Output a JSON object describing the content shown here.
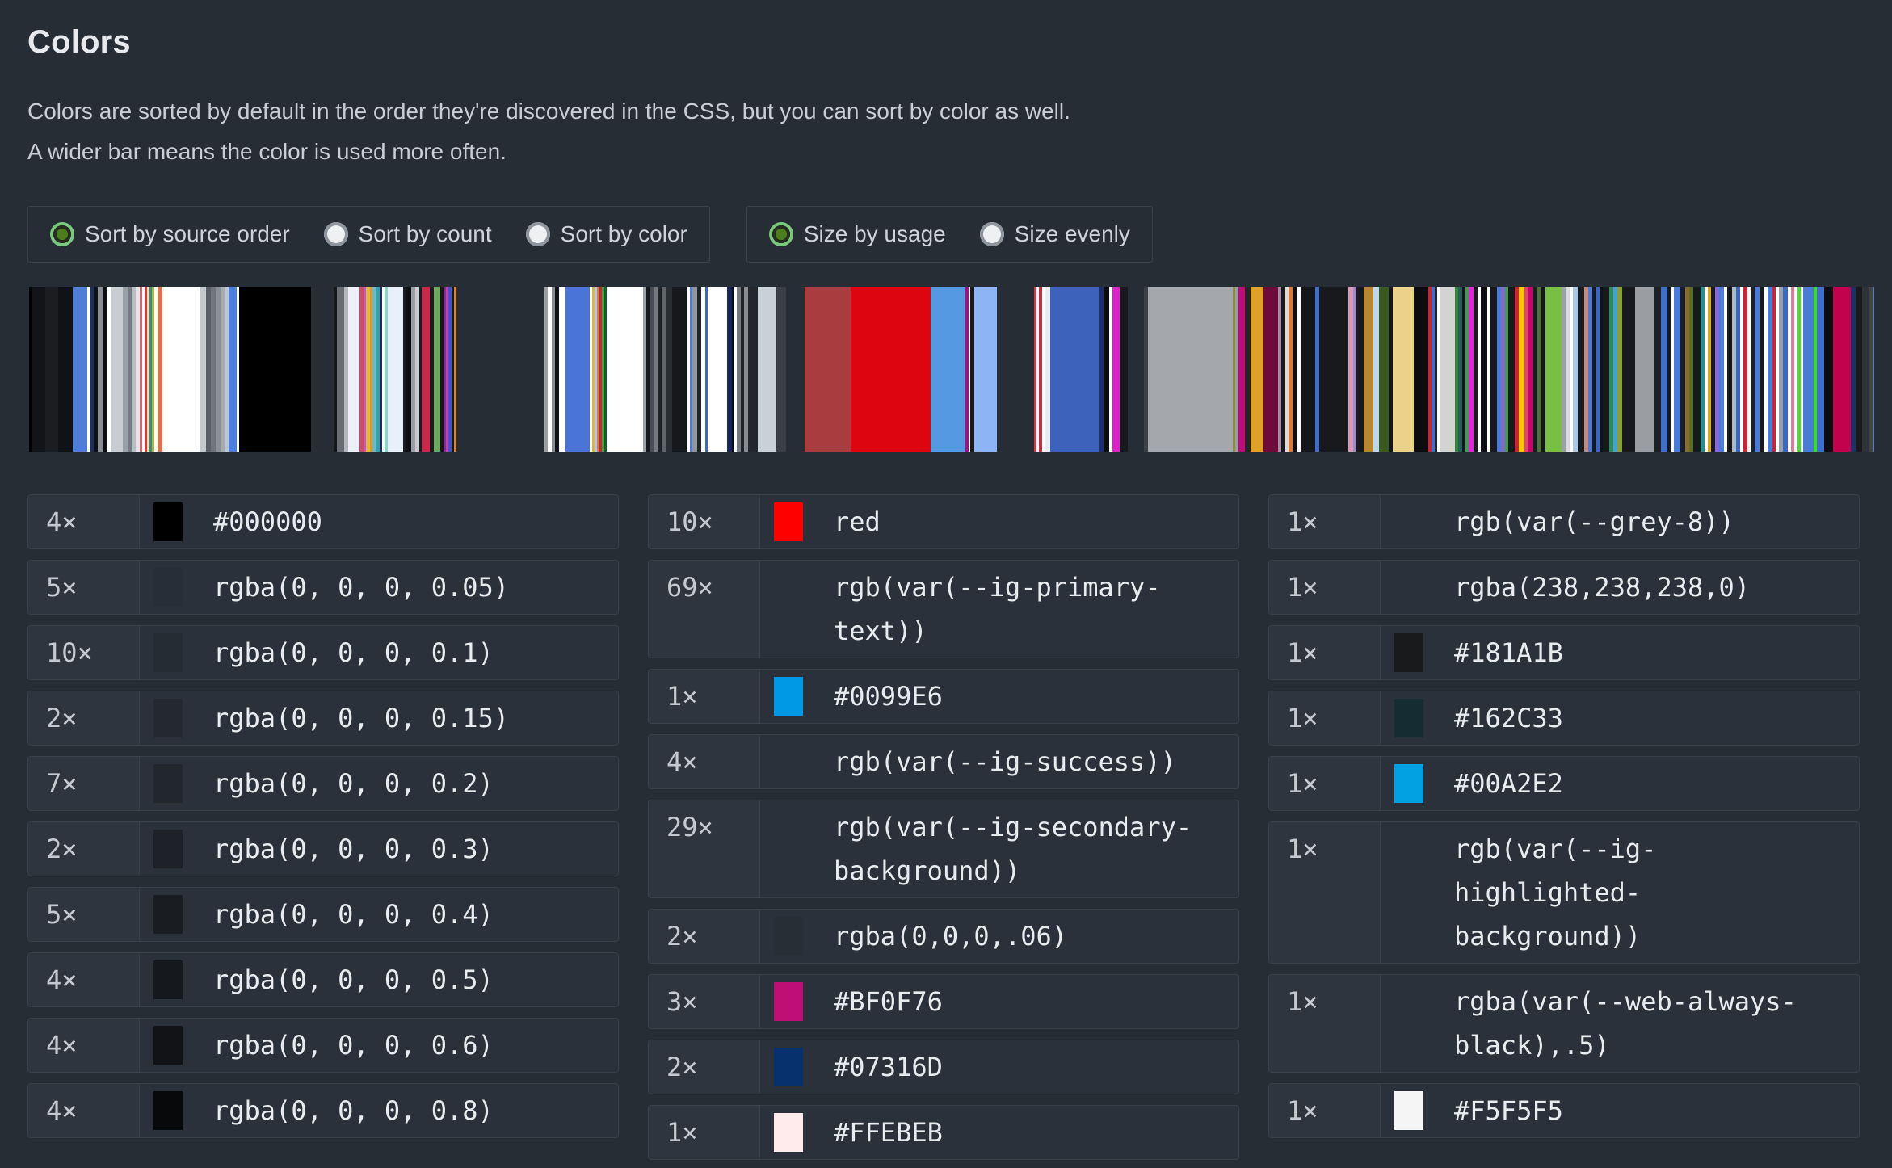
{
  "header": {
    "title": "Colors",
    "description_line1": "Colors are sorted by default in the order they're discovered in the CSS, but you can sort by color as well.",
    "description_line2": "A wider bar means the color is used more often."
  },
  "theme": {
    "page_background": "#272d34",
    "row_background": "#2b313a",
    "count_cell_background": "#2f353e",
    "border": "#3a414b",
    "radio_selected_green": "#79c87e",
    "radio_unselected_gray": "#8f959d",
    "heading_text": "#e8eaed",
    "body_text": "#c9ced4",
    "mono_text": "#e9ecef"
  },
  "controls": {
    "groups": [
      {
        "name": "sort",
        "options": [
          {
            "label": "Sort by source order",
            "selected": true
          },
          {
            "label": "Sort by count",
            "selected": false
          },
          {
            "label": "Sort by color",
            "selected": false
          }
        ]
      },
      {
        "name": "size",
        "options": [
          {
            "label": "Size by usage",
            "selected": true
          },
          {
            "label": "Size evenly",
            "selected": false
          }
        ]
      }
    ]
  },
  "color_bar": {
    "stripes": [
      [
        "#000000",
        4
      ],
      [
        "#121417",
        16
      ],
      [
        "#1b1d20",
        16
      ],
      [
        "#101215",
        18
      ],
      [
        "#4f7ed8",
        18
      ],
      [
        "#ffffff",
        4
      ],
      [
        "#1b2f5e",
        4
      ],
      [
        "#0e1116",
        5
      ],
      [
        "#888d93",
        7
      ],
      [
        "#0c0e11",
        4
      ],
      [
        "#ffffff",
        5
      ],
      [
        "#c9ccd0",
        15
      ],
      [
        "#9aa0a6",
        6
      ],
      [
        "#767c83",
        5
      ],
      [
        "#b9bec4",
        5
      ],
      [
        "#e3e5e8",
        5
      ],
      [
        "#d8636f",
        3
      ],
      [
        "#ffffff",
        3
      ],
      [
        "#d43a31",
        3
      ],
      [
        "#f2e0c0",
        3
      ],
      [
        "#3e8d7a",
        3
      ],
      [
        "#a6b83c",
        3
      ],
      [
        "#ffffff",
        4
      ],
      [
        "#e0714a",
        6
      ],
      [
        "#ffffff",
        46
      ],
      [
        "#c5c9cd",
        8
      ],
      [
        "#5a6066",
        6
      ],
      [
        "#6f757c",
        6
      ],
      [
        "#8a9097",
        6
      ],
      [
        "#a5abb2",
        6
      ],
      [
        "#c0c5cb",
        4
      ],
      [
        "#4a80e0",
        10
      ],
      [
        "#ffffff",
        3
      ],
      [
        "#000000",
        89
      ],
      [
        "transparent",
        28
      ],
      [
        "#14171a",
        4
      ],
      [
        "#6a6e72",
        9
      ],
      [
        "#b4b8bc",
        5
      ],
      [
        "#eef0f5",
        5
      ],
      [
        "#edf0f8",
        9
      ],
      [
        "#d04a66",
        5
      ],
      [
        "#c858c8",
        3
      ],
      [
        "#e0b83a",
        5
      ],
      [
        "#d89a28",
        3
      ],
      [
        "#68b8d8",
        4
      ],
      [
        "#3a9ea8",
        5
      ],
      [
        "#1c2f5e",
        3
      ],
      [
        "#ffffff",
        3
      ],
      [
        "#88d8c0",
        4
      ],
      [
        "#e8eefc",
        3
      ],
      [
        "#e8f0fc",
        16
      ],
      [
        "#181b1f",
        3
      ],
      [
        "#0e1013",
        7
      ],
      [
        "#9a9ea2",
        5
      ],
      [
        "#c6cacd",
        5
      ],
      [
        "#1b1e22",
        3
      ],
      [
        "#c22a4a",
        5
      ],
      [
        "#d0264a",
        5
      ],
      [
        "#1a1d21",
        5
      ],
      [
        "#6aa85c",
        8
      ],
      [
        "#14161a",
        4
      ],
      [
        "#8a2a8a",
        3
      ],
      [
        "#c040c0",
        3
      ],
      [
        "#3a56c8",
        4
      ],
      [
        "#16181c",
        3
      ],
      [
        "#e08030",
        3
      ],
      [
        "transparent",
        108
      ],
      [
        "#9aa0a5",
        5
      ],
      [
        "#ffffff",
        5
      ],
      [
        "#888d93",
        4
      ],
      [
        "#101215",
        5
      ],
      [
        "#ffffff",
        8
      ],
      [
        "#4a74d8",
        30
      ],
      [
        "#ffffff",
        3
      ],
      [
        "#d8b93a",
        3
      ],
      [
        "#a8c8f0",
        3
      ],
      [
        "#e07840",
        3
      ],
      [
        "#cc2430",
        3
      ],
      [
        "#3a9e4a",
        3
      ],
      [
        "#175c28",
        3
      ],
      [
        "#ffffff",
        45
      ],
      [
        "#9ba0a5",
        4
      ],
      [
        "#17191c",
        4
      ],
      [
        "#4a4e54",
        5
      ],
      [
        "#75797f",
        5
      ],
      [
        "#1e2125",
        5
      ],
      [
        "#606569",
        5
      ],
      [
        "#2a2e33",
        8
      ],
      [
        "#16181b",
        18
      ],
      [
        "#ffffff",
        4
      ],
      [
        "#4a7bd9",
        3
      ],
      [
        "#90959b",
        6
      ],
      [
        "#21252a",
        5
      ],
      [
        "#ffffff",
        5
      ],
      [
        "#3668cc",
        3
      ],
      [
        "#ffffff",
        24
      ],
      [
        "#1a2c52",
        3
      ],
      [
        "#13255c",
        3
      ],
      [
        "#0b0d10",
        3
      ],
      [
        "#ffffff",
        3
      ],
      [
        "#76797e",
        5
      ],
      [
        "#202429",
        4
      ],
      [
        "#898d92",
        5
      ],
      [
        "#23272c",
        12
      ],
      [
        "#c9d0d6",
        23
      ],
      [
        "#3a3f45",
        12
      ],
      [
        "transparent",
        23
      ],
      [
        "#a93c3f",
        57
      ],
      [
        "#dd0510",
        99
      ],
      [
        "#549ae2",
        43
      ],
      [
        "#b00882",
        4
      ],
      [
        "#ffffff",
        2
      ],
      [
        "#16181b",
        5
      ],
      [
        "#8db4f5",
        28
      ],
      [
        "transparent",
        46
      ],
      [
        "#d43844",
        3
      ],
      [
        "#ffffff",
        3
      ],
      [
        "#c03040",
        4
      ],
      [
        "#ffffff",
        3
      ],
      [
        "#e8ecf0",
        7
      ],
      [
        "#3c62bc",
        60
      ],
      [
        "#1b2f6a",
        6
      ],
      [
        "#0b0d10",
        7
      ],
      [
        "#ffffff",
        4
      ],
      [
        "#e020c8",
        9
      ],
      [
        "#17191c",
        10
      ],
      [
        "transparent",
        20
      ],
      [
        "#3b4046",
        5
      ],
      [
        "#a4a8ac",
        105
      ],
      [
        "#8a8d40",
        3
      ],
      [
        "#9a9ea2",
        4
      ],
      [
        "#c2087c",
        8
      ],
      [
        "#212428",
        7
      ],
      [
        "#e0a126",
        16
      ],
      [
        "#6e0a3c",
        18
      ],
      [
        "#a88aa0",
        4
      ],
      [
        "#17191c",
        5
      ],
      [
        "#d8dade",
        4
      ],
      [
        "#e07830",
        5
      ],
      [
        "#0c0e10",
        6
      ],
      [
        "#ffffff",
        4
      ],
      [
        "#141619",
        18
      ],
      [
        "#3f6ecc",
        5
      ],
      [
        "#17191d",
        36
      ],
      [
        "#d898b8",
        6
      ],
      [
        "#a08cc8",
        4
      ],
      [
        "#1a1d20",
        3
      ],
      [
        "#16181b",
        6
      ],
      [
        "#b8862c",
        12
      ],
      [
        "#bcd4ee",
        7
      ],
      [
        "#3a5a1c",
        12
      ],
      [
        "#14161a",
        5
      ],
      [
        "#ecd188",
        26
      ],
      [
        "#0b0c0e",
        18
      ],
      [
        "#cc2430",
        4
      ],
      [
        "#3f6ecc",
        4
      ],
      [
        "#1d2024",
        3
      ],
      [
        "#ffffff",
        4
      ],
      [
        "#d3d3d3",
        18
      ],
      [
        "#35843c",
        4
      ],
      [
        "#2a5c5c",
        5
      ],
      [
        "#14161a",
        4
      ],
      [
        "#3a9e4a",
        4
      ],
      [
        "#e224dc",
        6
      ],
      [
        "#17191c",
        5
      ],
      [
        "#ffffff",
        4
      ],
      [
        "#0c0e10",
        8
      ],
      [
        "#ffffff",
        3
      ],
      [
        "#17191c",
        9
      ],
      [
        "#4a7bd9",
        5
      ],
      [
        "#8668c8",
        5
      ],
      [
        "#3a9e4a",
        4
      ],
      [
        "#17191c",
        8
      ],
      [
        "#cc2430",
        5
      ],
      [
        "#ffc800",
        7
      ],
      [
        "#e0447c",
        5
      ],
      [
        "#cf006c",
        5
      ],
      [
        "#1a1d20",
        6
      ],
      [
        "#4f7038",
        5
      ],
      [
        "#14161a",
        5
      ],
      [
        "#77c043",
        20
      ],
      [
        "#9aa0a5",
        5
      ],
      [
        "#d8dce0",
        5
      ],
      [
        "#ffffff",
        4
      ],
      [
        "#a8c8e8",
        6
      ],
      [
        "#1a1d20",
        8
      ],
      [
        "#c88878",
        5
      ],
      [
        "#4a7bd9",
        5
      ],
      [
        "#17191c",
        5
      ],
      [
        "#3668cc",
        4
      ],
      [
        "#101215",
        4
      ],
      [
        "#17191c",
        8
      ],
      [
        "#2e8c5c",
        5
      ],
      [
        "#46a0d8",
        5
      ],
      [
        "#8aa02c",
        6
      ],
      [
        "#17191c",
        16
      ],
      [
        "#9a9ea2",
        24
      ],
      [
        "#1d2024",
        8
      ],
      [
        "#3f6ecc",
        8
      ],
      [
        "#17191c",
        5
      ],
      [
        "#ffffff",
        3
      ],
      [
        "#4a7bd9",
        8
      ],
      [
        "#1b1e22",
        6
      ],
      [
        "#8a6c2c",
        5
      ],
      [
        "#566e28",
        5
      ],
      [
        "#17191c",
        9
      ],
      [
        "#2a8c8c",
        5
      ],
      [
        "#ffffff",
        4
      ],
      [
        "#d8a826",
        4
      ],
      [
        "#17191c",
        5
      ],
      [
        "#8668e0",
        5
      ],
      [
        "#4a7bd9",
        6
      ],
      [
        "#ffffff",
        4
      ],
      [
        "#17191c",
        6
      ],
      [
        "#b0b8c0",
        5
      ],
      [
        "#3668cc",
        5
      ],
      [
        "#ffffff",
        4
      ],
      [
        "#cc2430",
        5
      ],
      [
        "#ffffff",
        4
      ],
      [
        "#1d2024",
        5
      ],
      [
        "#4a7bd9",
        6
      ],
      [
        "#17191c",
        6
      ],
      [
        "#ffffff",
        4
      ],
      [
        "#4a7bd9",
        6
      ],
      [
        "#cc2430",
        4
      ],
      [
        "#ffffff",
        4
      ],
      [
        "#9aa0a5",
        5
      ],
      [
        "#3668cc",
        6
      ],
      [
        "#ffffff",
        4
      ],
      [
        "#e87898",
        4
      ],
      [
        "#ffffff",
        4
      ],
      [
        "#44e028",
        4
      ],
      [
        "#ffffff",
        3
      ],
      [
        "#4a7bd9",
        13
      ],
      [
        "#3ae014",
        4
      ],
      [
        "#3f6ecc",
        9
      ],
      [
        "#0b0d10",
        11
      ],
      [
        "#c2024c",
        22
      ],
      [
        "#1b2f6a",
        6
      ],
      [
        "#17191c",
        8
      ],
      [
        "#2e3338",
        8
      ],
      [
        "#3f4449",
        6
      ],
      [
        "#4a7bd9",
        4
      ],
      [
        "#1d2125",
        9
      ],
      [
        "transparent",
        12
      ]
    ]
  },
  "columns": [
    {
      "rows": [
        {
          "count": "4×",
          "swatch": "#000000",
          "value": "#000000"
        },
        {
          "count": "5×",
          "swatch": "rgba(0, 0, 0, 0.05)",
          "value": "rgba(0, 0, 0, 0.05)"
        },
        {
          "count": "10×",
          "swatch": "rgba(0, 0, 0, 0.1)",
          "value": "rgba(0, 0, 0, 0.1)"
        },
        {
          "count": "2×",
          "swatch": "rgba(0, 0, 0, 0.15)",
          "value": "rgba(0, 0, 0, 0.15)"
        },
        {
          "count": "7×",
          "swatch": "rgba(0, 0, 0, 0.2)",
          "value": "rgba(0, 0, 0, 0.2)"
        },
        {
          "count": "2×",
          "swatch": "rgba(0, 0, 0, 0.3)",
          "value": "rgba(0, 0, 0, 0.3)"
        },
        {
          "count": "5×",
          "swatch": "rgba(0, 0, 0, 0.4)",
          "value": "rgba(0, 0, 0, 0.4)"
        },
        {
          "count": "4×",
          "swatch": "rgba(0, 0, 0, 0.5)",
          "value": "rgba(0, 0, 0, 0.5)"
        },
        {
          "count": "4×",
          "swatch": "rgba(0, 0, 0, 0.6)",
          "value": "rgba(0, 0, 0, 0.6)"
        },
        {
          "count": "4×",
          "swatch": "rgba(0, 0, 0, 0.8)",
          "value": "rgba(0, 0, 0, 0.8)"
        }
      ]
    },
    {
      "rows": [
        {
          "count": "10×",
          "swatch": "red",
          "value": "red"
        },
        {
          "count": "69×",
          "swatch": "transparent",
          "value": "rgb(var(--ig-primary-\ntext))"
        },
        {
          "count": "1×",
          "swatch": "#0099E6",
          "value": "#0099E6"
        },
        {
          "count": "4×",
          "swatch": "transparent",
          "value": "rgb(var(--ig-success))"
        },
        {
          "count": "29×",
          "swatch": "transparent",
          "value": "rgb(var(--ig-secondary-\nbackground))"
        },
        {
          "count": "2×",
          "swatch": "rgba(0,0,0,.06)",
          "value": "rgba(0,0,0,.06)"
        },
        {
          "count": "3×",
          "swatch": "#BF0F76",
          "value": "#BF0F76"
        },
        {
          "count": "2×",
          "swatch": "#07316D",
          "value": "#07316D"
        },
        {
          "count": "1×",
          "swatch": "#FFEBEB",
          "value": "#FFEBEB"
        }
      ]
    },
    {
      "rows": [
        {
          "count": "1×",
          "swatch": "transparent",
          "value": "rgb(var(--grey-8))"
        },
        {
          "count": "1×",
          "swatch": "rgba(238,238,238,0)",
          "value": "rgba(238,238,238,0)"
        },
        {
          "count": "1×",
          "swatch": "#181A1B",
          "value": "#181A1B"
        },
        {
          "count": "1×",
          "swatch": "#162C33",
          "value": "#162C33"
        },
        {
          "count": "1×",
          "swatch": "#00A2E2",
          "value": "#00A2E2"
        },
        {
          "count": "1×",
          "swatch": "transparent",
          "value": "rgb(var(--ig-\nhighlighted-\nbackground))"
        },
        {
          "count": "1×",
          "swatch": "transparent",
          "value": "rgba(var(--web-always-\nblack),.5)"
        },
        {
          "count": "1×",
          "swatch": "#F5F5F5",
          "value": "#F5F5F5"
        }
      ]
    }
  ]
}
